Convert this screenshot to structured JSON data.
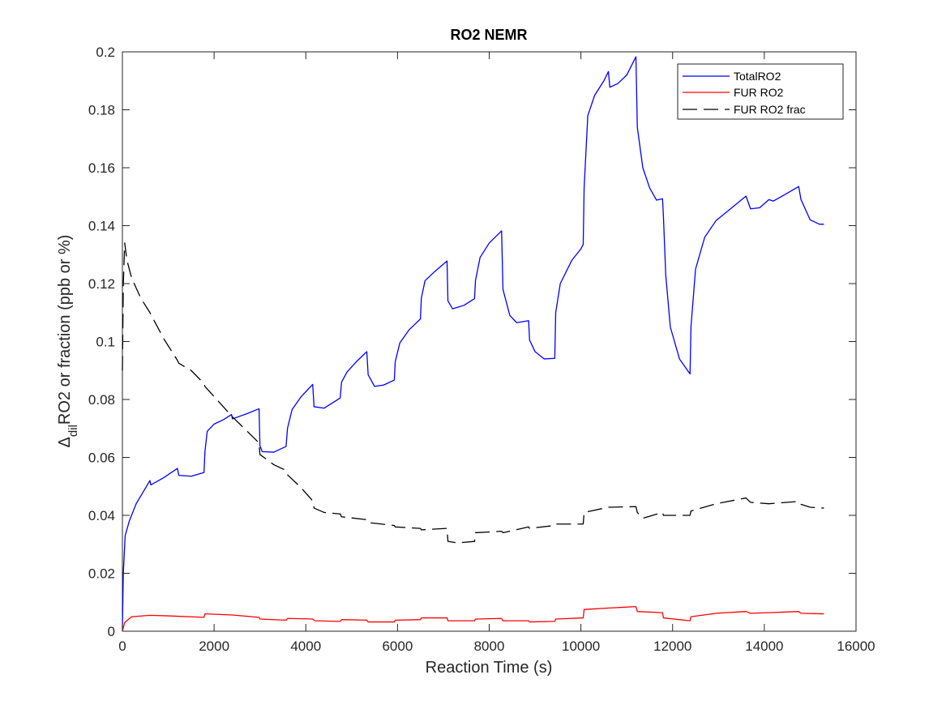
{
  "chart_data": {
    "type": "line",
    "title": "RO2 NEMR",
    "xlabel": "Reaction Time (s)",
    "ylabel": {
      "prefix": "Δ",
      "subscript": "dil",
      "suffix": "RO2 or fraction (ppb or %)"
    },
    "xlim": [
      0,
      16000
    ],
    "ylim": [
      0,
      0.2
    ],
    "xticks": [
      0,
      2000,
      4000,
      6000,
      8000,
      10000,
      12000,
      14000,
      16000
    ],
    "yticks": [
      0,
      0.02,
      0.04,
      0.06,
      0.08,
      0.1,
      0.12,
      0.14,
      0.16,
      0.18,
      0.2
    ],
    "xtick_labels": [
      "0",
      "2000",
      "4000",
      "6000",
      "8000",
      "10000",
      "12000",
      "14000",
      "16000"
    ],
    "ytick_labels": [
      "0",
      "0.02",
      "0.04",
      "0.06",
      "0.08",
      "0.1",
      "0.12",
      "0.14",
      "0.16",
      "0.18",
      "0.2"
    ],
    "grid": false,
    "legend_position": "top-right",
    "series": [
      {
        "name": "TotalRO2",
        "color": "#0000ff",
        "style": "solid",
        "points": [
          [
            0,
            0.001
          ],
          [
            20,
            0.02
          ],
          [
            60,
            0.033
          ],
          [
            150,
            0.038
          ],
          [
            300,
            0.044
          ],
          [
            450,
            0.048
          ],
          [
            600,
            0.052
          ],
          [
            620,
            0.0505
          ],
          [
            900,
            0.053
          ],
          [
            1200,
            0.0562
          ],
          [
            1230,
            0.0538
          ],
          [
            1500,
            0.0535
          ],
          [
            1780,
            0.0548
          ],
          [
            1800,
            0.062
          ],
          [
            1850,
            0.069
          ],
          [
            2000,
            0.0715
          ],
          [
            2200,
            0.073
          ],
          [
            2380,
            0.0748
          ],
          [
            2400,
            0.0733
          ],
          [
            2700,
            0.075
          ],
          [
            2980,
            0.0768
          ],
          [
            3000,
            0.064
          ],
          [
            3050,
            0.062
          ],
          [
            3300,
            0.0618
          ],
          [
            3570,
            0.0638
          ],
          [
            3600,
            0.07
          ],
          [
            3700,
            0.0765
          ],
          [
            3900,
            0.081
          ],
          [
            4150,
            0.0852
          ],
          [
            4180,
            0.0775
          ],
          [
            4400,
            0.077
          ],
          [
            4750,
            0.0805
          ],
          [
            4780,
            0.086
          ],
          [
            4900,
            0.0895
          ],
          [
            5100,
            0.093
          ],
          [
            5330,
            0.0965
          ],
          [
            5360,
            0.0885
          ],
          [
            5500,
            0.0845
          ],
          [
            5700,
            0.085
          ],
          [
            5930,
            0.0867
          ],
          [
            5950,
            0.093
          ],
          [
            6050,
            0.0995
          ],
          [
            6250,
            0.104
          ],
          [
            6500,
            0.1078
          ],
          [
            6520,
            0.115
          ],
          [
            6600,
            0.121
          ],
          [
            6800,
            0.124
          ],
          [
            7080,
            0.1278
          ],
          [
            7100,
            0.114
          ],
          [
            7200,
            0.1113
          ],
          [
            7450,
            0.1125
          ],
          [
            7680,
            0.1148
          ],
          [
            7700,
            0.121
          ],
          [
            7800,
            0.129
          ],
          [
            8000,
            0.134
          ],
          [
            8270,
            0.1382
          ],
          [
            8300,
            0.118
          ],
          [
            8450,
            0.109
          ],
          [
            8600,
            0.1065
          ],
          [
            8860,
            0.1072
          ],
          [
            8880,
            0.1005
          ],
          [
            9000,
            0.0965
          ],
          [
            9200,
            0.094
          ],
          [
            9430,
            0.0942
          ],
          [
            9450,
            0.11
          ],
          [
            9550,
            0.12
          ],
          [
            9800,
            0.128
          ],
          [
            10000,
            0.132
          ],
          [
            10050,
            0.1335
          ],
          [
            10070,
            0.153
          ],
          [
            10150,
            0.178
          ],
          [
            10300,
            0.185
          ],
          [
            10500,
            0.19
          ],
          [
            10600,
            0.1932
          ],
          [
            10630,
            0.1878
          ],
          [
            10800,
            0.189
          ],
          [
            11000,
            0.192
          ],
          [
            11200,
            0.1983
          ],
          [
            11230,
            0.174
          ],
          [
            11350,
            0.16
          ],
          [
            11500,
            0.153
          ],
          [
            11650,
            0.1488
          ],
          [
            11780,
            0.1493
          ],
          [
            11800,
            0.143
          ],
          [
            11850,
            0.123
          ],
          [
            11950,
            0.105
          ],
          [
            12150,
            0.094
          ],
          [
            12380,
            0.0888
          ],
          [
            12400,
            0.105
          ],
          [
            12500,
            0.125
          ],
          [
            12700,
            0.136
          ],
          [
            12950,
            0.1418
          ],
          [
            13200,
            0.145
          ],
          [
            13600,
            0.1502
          ],
          [
            13700,
            0.1458
          ],
          [
            13900,
            0.1462
          ],
          [
            14100,
            0.149
          ],
          [
            14200,
            0.1485
          ],
          [
            14500,
            0.1512
          ],
          [
            14750,
            0.1535
          ],
          [
            14800,
            0.149
          ],
          [
            15000,
            0.142
          ],
          [
            15200,
            0.1405
          ],
          [
            15300,
            0.1405
          ]
        ]
      },
      {
        "name": "FUR RO2",
        "color": "#ff0000",
        "style": "solid",
        "points": [
          [
            0,
            0
          ],
          [
            50,
            0.003
          ],
          [
            200,
            0.005
          ],
          [
            600,
            0.0055
          ],
          [
            1000,
            0.0053
          ],
          [
            1780,
            0.0048
          ],
          [
            1800,
            0.006
          ],
          [
            2400,
            0.0056
          ],
          [
            2980,
            0.0048
          ],
          [
            3000,
            0.0042
          ],
          [
            3570,
            0.0038
          ],
          [
            3600,
            0.0044
          ],
          [
            4150,
            0.0042
          ],
          [
            4200,
            0.0036
          ],
          [
            4750,
            0.0034
          ],
          [
            4780,
            0.004
          ],
          [
            5330,
            0.0038
          ],
          [
            5360,
            0.0032
          ],
          [
            5930,
            0.0032
          ],
          [
            5950,
            0.0038
          ],
          [
            6500,
            0.004
          ],
          [
            6520,
            0.0046
          ],
          [
            7080,
            0.0046
          ],
          [
            7100,
            0.0036
          ],
          [
            7680,
            0.0036
          ],
          [
            7700,
            0.0042
          ],
          [
            8270,
            0.0044
          ],
          [
            8300,
            0.0036
          ],
          [
            8860,
            0.0036
          ],
          [
            8880,
            0.0032
          ],
          [
            9430,
            0.0034
          ],
          [
            9450,
            0.0042
          ],
          [
            10050,
            0.0046
          ],
          [
            10070,
            0.0075
          ],
          [
            10600,
            0.008
          ],
          [
            11200,
            0.0085
          ],
          [
            11230,
            0.0068
          ],
          [
            11780,
            0.0064
          ],
          [
            11800,
            0.0046
          ],
          [
            12380,
            0.0036
          ],
          [
            12400,
            0.005
          ],
          [
            12950,
            0.0062
          ],
          [
            13600,
            0.0068
          ],
          [
            13700,
            0.0062
          ],
          [
            14100,
            0.0064
          ],
          [
            14750,
            0.0068
          ],
          [
            14800,
            0.0062
          ],
          [
            15300,
            0.006
          ]
        ]
      },
      {
        "name": "FUR RO2 frac",
        "color": "#000000",
        "style": "dashed",
        "points": [
          [
            0,
            0.09
          ],
          [
            20,
            0.12
          ],
          [
            50,
            0.134
          ],
          [
            100,
            0.128
          ],
          [
            200,
            0.122
          ],
          [
            400,
            0.115
          ],
          [
            600,
            0.11
          ],
          [
            900,
            0.101
          ],
          [
            1200,
            0.0935
          ],
          [
            1230,
            0.0925
          ],
          [
            1500,
            0.09
          ],
          [
            1780,
            0.0855
          ],
          [
            1800,
            0.0845
          ],
          [
            2000,
            0.081
          ],
          [
            2400,
            0.074
          ],
          [
            2980,
            0.065
          ],
          [
            3000,
            0.061
          ],
          [
            3300,
            0.0575
          ],
          [
            3570,
            0.0555
          ],
          [
            3600,
            0.054
          ],
          [
            3900,
            0.0495
          ],
          [
            4150,
            0.045
          ],
          [
            4180,
            0.0425
          ],
          [
            4400,
            0.041
          ],
          [
            4750,
            0.0405
          ],
          [
            4780,
            0.0395
          ],
          [
            5330,
            0.0385
          ],
          [
            5360,
            0.0375
          ],
          [
            5930,
            0.0365
          ],
          [
            5950,
            0.036
          ],
          [
            6500,
            0.0355
          ],
          [
            6520,
            0.035
          ],
          [
            7080,
            0.0355
          ],
          [
            7100,
            0.031
          ],
          [
            7300,
            0.0305
          ],
          [
            7680,
            0.031
          ],
          [
            7700,
            0.034
          ],
          [
            8270,
            0.0345
          ],
          [
            8300,
            0.034
          ],
          [
            8860,
            0.036
          ],
          [
            8880,
            0.0355
          ],
          [
            9430,
            0.0365
          ],
          [
            9450,
            0.037
          ],
          [
            10050,
            0.037
          ],
          [
            10070,
            0.041
          ],
          [
            10600,
            0.0428
          ],
          [
            11200,
            0.043
          ],
          [
            11230,
            0.041
          ],
          [
            11350,
            0.039
          ],
          [
            11780,
            0.041
          ],
          [
            11800,
            0.04
          ],
          [
            12380,
            0.04
          ],
          [
            12400,
            0.0415
          ],
          [
            12950,
            0.044
          ],
          [
            13600,
            0.046
          ],
          [
            13700,
            0.0445
          ],
          [
            14100,
            0.044
          ],
          [
            14750,
            0.0448
          ],
          [
            14800,
            0.0438
          ],
          [
            15000,
            0.0428
          ],
          [
            15300,
            0.0425
          ]
        ]
      }
    ]
  }
}
